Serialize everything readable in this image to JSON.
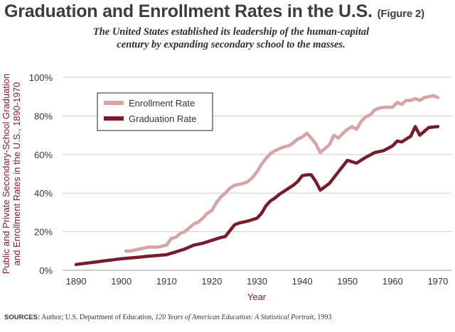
{
  "header": {
    "title": "Graduation and Enrollment Rates in the U.S.",
    "figure_label": "(Figure 2)",
    "subtitle_line1": "The United States established its leadership of the human-capital",
    "subtitle_line2": "century by expanding secondary school to the masses."
  },
  "footer": {
    "sources_label": "SOURCES:",
    "sources_text": "Author; U.S. Department of Education,",
    "sources_book": "120 Years of American Education: A Statistical Portrait",
    "sources_year": ", 1993"
  },
  "colors": {
    "enrollment": "#d6a4a4",
    "graduation": "#7a1b2c",
    "axis_title": "#8b1a2a",
    "grid": "#cccccc"
  },
  "chart_data": {
    "type": "line",
    "title": "Graduation and Enrollment Rates in the U.S.",
    "xlabel": "Year",
    "ylabel_line1": "Public and Private Secondary-School Graduation",
    "ylabel_line2": "and Enrollment Rates in the U.S., 1890-1970",
    "xlim": [
      1887,
      1973
    ],
    "ylim": [
      0,
      100
    ],
    "xticks": [
      1890,
      1900,
      1910,
      1920,
      1930,
      1940,
      1950,
      1960,
      1970
    ],
    "yticks": [
      0,
      20,
      40,
      60,
      80,
      100
    ],
    "ytick_labels": [
      "0%",
      "20%",
      "40%",
      "60%",
      "80%",
      "100%"
    ],
    "grid": true,
    "legend_position": "upper-left",
    "series": [
      {
        "name": "Enrollment Rate",
        "x": [
          1901,
          1902,
          1903,
          1904,
          1905,
          1906,
          1907,
          1908,
          1909,
          1910,
          1911,
          1912,
          1913,
          1914,
          1915,
          1916,
          1917,
          1918,
          1919,
          1920,
          1921,
          1922,
          1923,
          1924,
          1925,
          1926,
          1927,
          1928,
          1929,
          1930,
          1931,
          1932,
          1933,
          1934,
          1935,
          1936,
          1937,
          1938,
          1939,
          1940,
          1941,
          1942,
          1943,
          1944,
          1945,
          1946,
          1947,
          1948,
          1949,
          1950,
          1951,
          1952,
          1953,
          1954,
          1955,
          1956,
          1957,
          1958,
          1959,
          1960,
          1961,
          1962,
          1963,
          1964,
          1965,
          1966,
          1967,
          1968,
          1969,
          1970
        ],
        "values": [
          10,
          10,
          10.5,
          11,
          11.5,
          12,
          12,
          12,
          12.5,
          13,
          16.5,
          17,
          19,
          20,
          22,
          24,
          25,
          27,
          29.5,
          31,
          35,
          38,
          40,
          42.5,
          44,
          44.5,
          45,
          46,
          48,
          51,
          55,
          58,
          60.5,
          62,
          63,
          64,
          64.5,
          66,
          68,
          69,
          71,
          68.5,
          65.5,
          61,
          63,
          65,
          70,
          68.5,
          71,
          73,
          74.5,
          73,
          77,
          79.5,
          80.5,
          83,
          84,
          84.5,
          84.5,
          84.5,
          87,
          86,
          88,
          88,
          89,
          88,
          89.5,
          90,
          90.5,
          89.5
        ]
      },
      {
        "name": "Graduation Rate",
        "x": [
          1890,
          1892,
          1894,
          1896,
          1898,
          1900,
          1902,
          1904,
          1906,
          1908,
          1910,
          1912,
          1914,
          1916,
          1918,
          1920,
          1922,
          1923,
          1924,
          1925,
          1926,
          1928,
          1930,
          1931,
          1932,
          1933,
          1934,
          1935,
          1936,
          1937,
          1938,
          1939,
          1940,
          1941,
          1942,
          1943,
          1944,
          1946,
          1948,
          1950,
          1952,
          1954,
          1956,
          1957,
          1958,
          1960,
          1961,
          1962,
          1963,
          1964,
          1965,
          1966,
          1968,
          1970
        ],
        "values": [
          3,
          3.6,
          4.2,
          4.8,
          5.4,
          6,
          6.4,
          6.8,
          7.3,
          7.7,
          8.1,
          9.5,
          11,
          13,
          14,
          15.5,
          17,
          17.5,
          20.5,
          23.5,
          24.5,
          25.5,
          27,
          29.5,
          33.5,
          36,
          37.5,
          39.5,
          41,
          42.5,
          44,
          46,
          49,
          49.5,
          49.5,
          46,
          41.5,
          45,
          51,
          57,
          55.5,
          58.5,
          61,
          61.5,
          62,
          64.5,
          67,
          66.5,
          68,
          69.5,
          74.5,
          70,
          74,
          74.5
        ]
      }
    ]
  }
}
